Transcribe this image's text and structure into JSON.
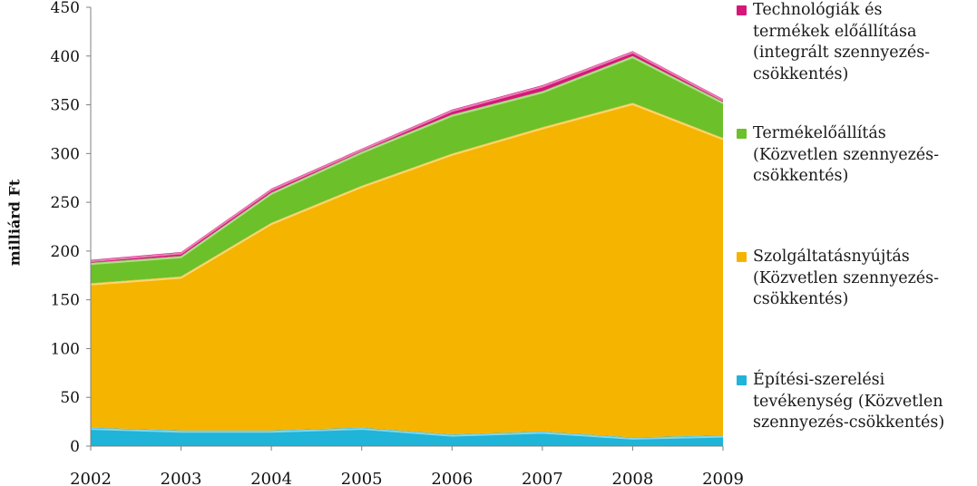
{
  "chart_data": {
    "type": "area",
    "stacked": true,
    "title": "",
    "xlabel": "",
    "ylabel": "milliárd Ft",
    "ylim": [
      0,
      450
    ],
    "y_ticks": [
      0,
      50,
      100,
      150,
      200,
      250,
      300,
      350,
      400,
      450
    ],
    "categories": [
      "2002",
      "2003",
      "2004",
      "2005",
      "2006",
      "2007",
      "2008",
      "2009"
    ],
    "grid": false,
    "legend_position": "right",
    "series": [
      {
        "name": "Építési-szerelési tevékenység (Közvetlen szennyezés-csökkentés)",
        "color": "#1fb4d8",
        "values": [
          19,
          16,
          16,
          19,
          12,
          15,
          9,
          11
        ]
      },
      {
        "name": "Szolgáltatásnyújtás (Közvetlen szennyezés-csökkentés)",
        "color": "#f5b400",
        "values": [
          148,
          158,
          213,
          248,
          288,
          312,
          343,
          305
        ]
      },
      {
        "name": "Termékelőállítás (Közvetlen szennyezés-csökkentés)",
        "color": "#6cc02a",
        "values": [
          21,
          21,
          31,
          35,
          40,
          37,
          48,
          37
        ]
      },
      {
        "name": "Technológiák és termékek előállítása (integrált szennyezés-csökkentés)",
        "color": "#d6177a",
        "values": [
          3,
          4,
          4,
          3,
          5,
          6,
          5,
          3
        ]
      }
    ]
  },
  "legend": [
    {
      "text": "Technológiák és\ntermékek előállítása\n(integrált szennyezés-\ncsökkentés)",
      "color": "#d6177a"
    },
    {
      "text": "Termékelőállítás\n(Közvetlen szennyezés-\ncsökkentés)",
      "color": "#6cc02a"
    },
    {
      "text": "Szolgáltatásnyújtás\n(Közvetlen szennyezés-\ncsökkentés)",
      "color": "#f5b400"
    },
    {
      "text": "Építési-szerelési\ntevékenység (Közvetlen\nszennyezés-csökkentés)",
      "color": "#1fb4d8"
    }
  ]
}
